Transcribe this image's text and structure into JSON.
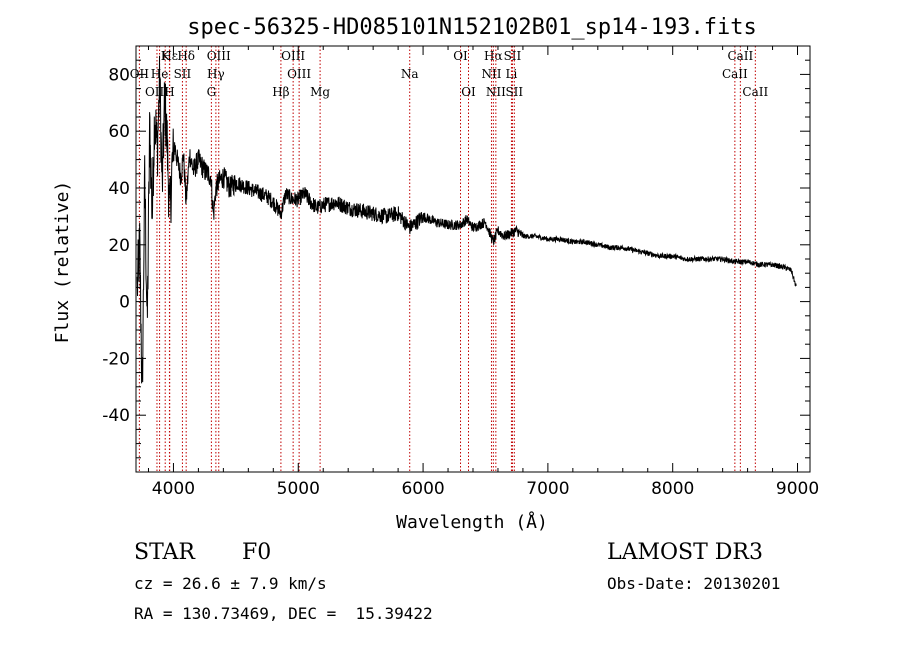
{
  "chart_data": {
    "type": "line",
    "title": "spec-56325-HD085101N152102B01_sp14-193.fits",
    "xlabel": "Wavelength (Å)",
    "ylabel": "Flux (relative)",
    "xlim": [
      3700,
      9100
    ],
    "ylim": [
      -60,
      90
    ],
    "xticks": [
      4000,
      5000,
      6000,
      7000,
      8000,
      9000
    ],
    "yticks": [
      -40,
      -20,
      0,
      20,
      40,
      60,
      80
    ],
    "series": [
      {
        "name": "flux",
        "x": [
          3710,
          3730,
          3750,
          3770,
          3790,
          3810,
          3830,
          3850,
          3870,
          3890,
          3910,
          3930,
          3950,
          3970,
          3990,
          4010,
          4030,
          4060,
          4080,
          4101,
          4130,
          4160,
          4200,
          4250,
          4300,
          4320,
          4340,
          4360,
          4400,
          4450,
          4500,
          4550,
          4600,
          4650,
          4700,
          4750,
          4800,
          4861,
          4900,
          4950,
          5000,
          5050,
          5100,
          5150,
          5200,
          5300,
          5400,
          5500,
          5600,
          5700,
          5800,
          5890,
          5950,
          6000,
          6100,
          6200,
          6300,
          6350,
          6400,
          6450,
          6500,
          6563,
          6600,
          6650,
          6700,
          6750,
          6800,
          6900,
          7000,
          7100,
          7200,
          7300,
          7400,
          7500,
          7600,
          7700,
          7800,
          7900,
          8000,
          8100,
          8200,
          8300,
          8400,
          8500,
          8550,
          8600,
          8700,
          8800,
          8900,
          8950,
          8990
        ],
        "y": [
          5,
          20,
          -35,
          45,
          -10,
          62,
          30,
          68,
          52,
          78,
          40,
          72,
          55,
          30,
          48,
          55,
          50,
          44,
          52,
          35,
          52,
          46,
          50,
          46,
          44,
          30,
          40,
          42,
          44,
          40,
          42,
          41,
          40,
          39,
          38,
          37,
          35,
          31,
          38,
          36,
          36,
          38,
          35,
          33,
          34,
          35,
          33,
          32,
          31,
          30,
          31,
          26,
          28,
          30,
          28,
          27,
          27,
          29,
          26,
          27,
          28,
          21,
          25,
          23,
          24,
          25,
          23,
          23,
          22,
          22,
          21,
          21,
          20,
          19,
          19,
          18,
          17,
          16,
          16,
          15,
          15,
          15,
          15,
          14,
          14,
          14,
          13,
          13,
          12,
          11,
          5
        ]
      }
    ],
    "line_markers": [
      {
        "label": "Hε",
        "wavelength": 3970,
        "row": 0
      },
      {
        "label": "K",
        "wavelength": 3934,
        "row": 0
      },
      {
        "label": "Hδ",
        "wavelength": 4102,
        "row": 0
      },
      {
        "label": "OIII",
        "wavelength": 4363,
        "row": 0
      },
      {
        "label": "OIII",
        "wavelength": 4959,
        "row": 0
      },
      {
        "label": "OI",
        "wavelength": 6300,
        "row": 0
      },
      {
        "label": "Hα",
        "wavelength": 6563,
        "row": 0
      },
      {
        "label": "SII",
        "wavelength": 6716,
        "row": 0
      },
      {
        "label": "CaII",
        "wavelength": 8542,
        "row": 0
      },
      {
        "label": "OII",
        "wavelength": 3727,
        "row": 1
      },
      {
        "label": "He",
        "wavelength": 3889,
        "row": 1
      },
      {
        "label": "SII",
        "wavelength": 4072,
        "row": 1
      },
      {
        "label": "Hγ",
        "wavelength": 4340,
        "row": 1
      },
      {
        "label": "OIII",
        "wavelength": 5007,
        "row": 1
      },
      {
        "label": "Na",
        "wavelength": 5893,
        "row": 1
      },
      {
        "label": "NII",
        "wavelength": 6548,
        "row": 1
      },
      {
        "label": "Li",
        "wavelength": 6708,
        "row": 1
      },
      {
        "label": "CaII",
        "wavelength": 8498,
        "row": 1
      },
      {
        "label": "OIII",
        "wavelength": 3868,
        "row": 2
      },
      {
        "label": "H",
        "wavelength": 3968,
        "row": 2
      },
      {
        "label": "G",
        "wavelength": 4304,
        "row": 2
      },
      {
        "label": "Hβ",
        "wavelength": 4861,
        "row": 2
      },
      {
        "label": "Mg",
        "wavelength": 5175,
        "row": 2
      },
      {
        "label": "OI",
        "wavelength": 6364,
        "row": 2
      },
      {
        "label": "NII",
        "wavelength": 6583,
        "row": 2
      },
      {
        "label": "SII",
        "wavelength": 6731,
        "row": 2
      },
      {
        "label": "CaII",
        "wavelength": 8662,
        "row": 2
      }
    ]
  },
  "info": {
    "class_label": "STAR",
    "subclass": "F0",
    "survey": "LAMOST DR3",
    "redshift": "cz = 26.6 ± 7.9 km/s",
    "obs_date": "Obs-Date: 20130201",
    "coords": "RA = 130.73469, DEC =  15.39422"
  }
}
